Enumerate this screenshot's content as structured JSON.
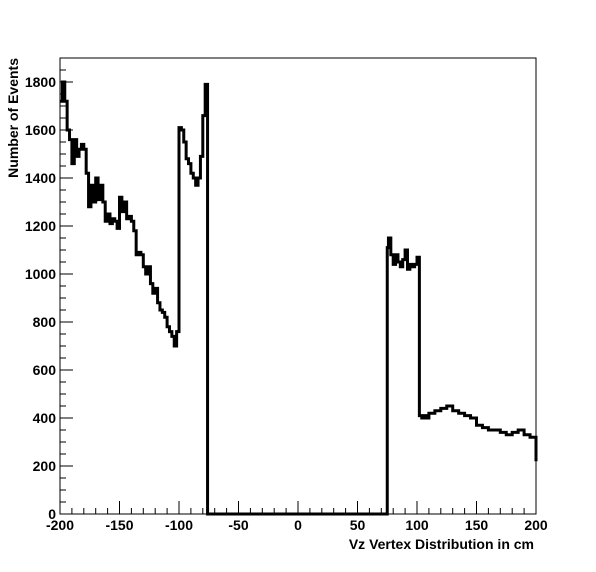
{
  "chart_data": {
    "type": "line",
    "xlabel": "Vz Vertex Distribution in cm",
    "ylabel": "Number of Events",
    "xlim": [
      -200,
      200
    ],
    "ylim": [
      0,
      1900
    ],
    "x_ticks": [
      -200,
      -150,
      -100,
      -50,
      0,
      50,
      100,
      150,
      200
    ],
    "y_ticks": [
      0,
      200,
      400,
      600,
      800,
      1000,
      1200,
      1400,
      1600,
      1800
    ],
    "grid": false,
    "legend": "none",
    "line_color": "#000000",
    "series": [
      {
        "x": [
          -200,
          -198,
          -196,
          -194,
          -192,
          -190,
          -188,
          -186,
          -184,
          -182,
          -180,
          -178,
          -176,
          -174,
          -172,
          -170,
          -168,
          -166,
          -164,
          -162,
          -160,
          -158,
          -156,
          -154,
          -152,
          -150,
          -148,
          -146,
          -144,
          -142,
          -140,
          -138,
          -136,
          -134,
          -132,
          -130,
          -128,
          -126,
          -124,
          -122,
          -120,
          -118,
          -116,
          -114,
          -112,
          -110,
          -108,
          -106,
          -104,
          -102,
          -100,
          -98,
          -96,
          -94,
          -92,
          -90,
          -88,
          -86,
          -84,
          -82,
          -80,
          -78,
          -76,
          -75,
          -50,
          -25,
          0,
          25,
          50,
          74,
          75,
          76,
          78,
          80,
          82,
          84,
          86,
          88,
          90,
          92,
          94,
          96,
          98,
          100,
          102,
          104,
          106,
          108,
          110,
          115,
          120,
          125,
          130,
          135,
          140,
          145,
          150,
          155,
          160,
          165,
          170,
          175,
          180,
          185,
          190,
          195,
          197,
          200
        ],
        "y": [
          1720,
          1800,
          1720,
          1600,
          1560,
          1460,
          1560,
          1490,
          1520,
          1540,
          1520,
          1420,
          1280,
          1370,
          1300,
          1400,
          1310,
          1370,
          1300,
          1220,
          1250,
          1210,
          1230,
          1220,
          1190,
          1320,
          1260,
          1300,
          1230,
          1240,
          1220,
          1180,
          1080,
          1090,
          1080,
          1030,
          1000,
          1030,
          960,
          920,
          940,
          880,
          850,
          840,
          820,
          780,
          760,
          740,
          700,
          760,
          1610,
          1600,
          1550,
          1480,
          1460,
          1420,
          1400,
          1370,
          1400,
          1490,
          1660,
          1790,
          0,
          0,
          0,
          0,
          0,
          0,
          0,
          0,
          1110,
          1150,
          1080,
          1040,
          1080,
          1050,
          1030,
          1060,
          1100,
          1020,
          1040,
          1030,
          1040,
          1070,
          410,
          400,
          410,
          400,
          420,
          430,
          440,
          450,
          430,
          420,
          410,
          400,
          370,
          360,
          350,
          350,
          340,
          330,
          340,
          350,
          330,
          320,
          320,
          220
        ]
      }
    ]
  }
}
